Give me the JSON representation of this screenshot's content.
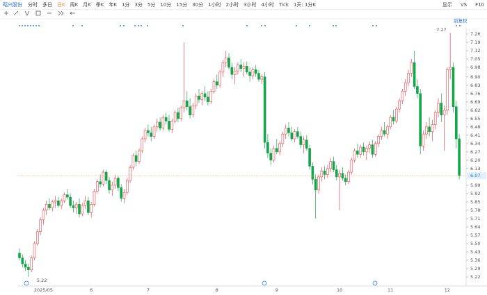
{
  "toolbar": {
    "stock": "昭兴股份",
    "periods": [
      "分时",
      "多日",
      "日K",
      "周K",
      "月K",
      "季K",
      "年K",
      "1分",
      "3分",
      "5分",
      "10分",
      "15分",
      "30分",
      "1小时",
      "2小时",
      "3小时",
      "4小时",
      "Tick",
      "1天: 1分K"
    ],
    "active_period": 2,
    "right": [
      "显示",
      "VS",
      "F10"
    ]
  },
  "chart_data": {
    "type": "candlestick",
    "adjust_label": "前复权",
    "up_color": "#e8474a",
    "down_color": "#13a54a",
    "categories": [
      null,
      null,
      null,
      null,
      null,
      null,
      null,
      null,
      "2025/05",
      null,
      null,
      null,
      null,
      null,
      null,
      null,
      null,
      null,
      null,
      null,
      null,
      null,
      null,
      null,
      "6",
      null,
      null,
      null,
      null,
      null,
      null,
      null,
      null,
      null,
      null,
      null,
      null,
      null,
      null,
      null,
      null,
      null,
      null,
      "7",
      null,
      null,
      null,
      null,
      null,
      null,
      null,
      null,
      null,
      null,
      null,
      null,
      null,
      null,
      null,
      null,
      null,
      null,
      null,
      null,
      null,
      null,
      "8",
      null,
      null,
      null,
      null,
      null,
      null,
      null,
      null,
      null,
      null,
      null,
      null,
      null,
      null,
      null,
      null,
      null,
      null,
      null,
      "9",
      null,
      null,
      null,
      null,
      null,
      null,
      null,
      null,
      null,
      null,
      null,
      null,
      null,
      null,
      null,
      null,
      null,
      null,
      null,
      null,
      "10",
      null,
      null,
      null,
      null,
      null,
      null,
      null,
      null,
      null,
      null,
      null,
      null,
      null,
      null,
      null,
      null,
      "11",
      null,
      null,
      null,
      null,
      null,
      null,
      null,
      null,
      null,
      null,
      null,
      null,
      null,
      null,
      null,
      null,
      null,
      null,
      "12",
      null,
      null,
      null,
      null
    ],
    "candles": [
      [
        5.42,
        5.46,
        5.36,
        5.38
      ],
      [
        5.38,
        5.41,
        5.3,
        5.33
      ],
      [
        5.33,
        5.36,
        5.27,
        5.3
      ],
      [
        5.3,
        5.33,
        5.22,
        5.28
      ],
      [
        5.28,
        5.4,
        5.26,
        5.38
      ],
      [
        5.38,
        5.52,
        5.36,
        5.5
      ],
      [
        5.5,
        5.62,
        5.48,
        5.6
      ],
      [
        5.6,
        5.72,
        5.57,
        5.7
      ],
      [
        5.7,
        5.8,
        5.66,
        5.78
      ],
      [
        5.78,
        5.86,
        5.74,
        5.83
      ],
      [
        5.83,
        5.88,
        5.78,
        5.8
      ],
      [
        5.8,
        5.87,
        5.77,
        5.85
      ],
      [
        5.85,
        5.9,
        5.8,
        5.86
      ],
      [
        5.86,
        5.89,
        5.8,
        5.82
      ],
      [
        5.82,
        5.88,
        5.79,
        5.86
      ],
      [
        5.86,
        5.93,
        5.84,
        5.91
      ],
      [
        5.91,
        5.96,
        5.87,
        5.89
      ],
      [
        5.89,
        5.92,
        5.8,
        5.82
      ],
      [
        5.82,
        5.86,
        5.76,
        5.8
      ],
      [
        5.8,
        5.85,
        5.75,
        5.83
      ],
      [
        5.83,
        5.88,
        5.72,
        5.75
      ],
      [
        5.75,
        5.84,
        5.73,
        5.82
      ],
      [
        5.82,
        5.9,
        5.79,
        5.86
      ],
      [
        5.86,
        5.89,
        5.74,
        5.76
      ],
      [
        5.76,
        5.85,
        5.72,
        5.83
      ],
      [
        5.83,
        5.96,
        5.81,
        5.94
      ],
      [
        5.94,
        6.04,
        5.92,
        6.02
      ],
      [
        6.02,
        6.08,
        5.97,
        6.0
      ],
      [
        6.0,
        6.12,
        5.98,
        6.1
      ],
      [
        6.1,
        6.12,
        6.0,
        6.03
      ],
      [
        6.03,
        6.06,
        5.92,
        5.95
      ],
      [
        5.95,
        6.02,
        5.9,
        5.99
      ],
      [
        5.99,
        6.08,
        5.96,
        6.05
      ],
      [
        6.05,
        6.07,
        5.94,
        5.97
      ],
      [
        5.97,
        6.0,
        5.85,
        5.88
      ],
      [
        5.88,
        5.96,
        5.84,
        5.93
      ],
      [
        5.93,
        6.05,
        5.91,
        6.03
      ],
      [
        6.03,
        6.16,
        6.01,
        6.14
      ],
      [
        6.14,
        6.26,
        6.12,
        6.24
      ],
      [
        6.24,
        6.28,
        6.15,
        6.19
      ],
      [
        6.19,
        6.3,
        6.17,
        6.28
      ],
      [
        6.28,
        6.4,
        6.26,
        6.38
      ],
      [
        6.38,
        6.47,
        6.35,
        6.45
      ],
      [
        6.45,
        6.5,
        6.4,
        6.43
      ],
      [
        6.43,
        6.48,
        6.36,
        6.4
      ],
      [
        6.4,
        6.5,
        6.38,
        6.48
      ],
      [
        6.48,
        6.55,
        6.44,
        6.52
      ],
      [
        6.52,
        6.56,
        6.45,
        6.47
      ],
      [
        6.47,
        6.58,
        6.45,
        6.56
      ],
      [
        6.56,
        6.6,
        6.5,
        6.53
      ],
      [
        6.53,
        6.58,
        6.44,
        6.46
      ],
      [
        6.46,
        6.55,
        6.43,
        6.53
      ],
      [
        6.53,
        6.62,
        6.51,
        6.6
      ],
      [
        6.6,
        6.64,
        6.52,
        6.55
      ],
      [
        6.55,
        6.66,
        6.53,
        6.64
      ],
      [
        6.64,
        7.19,
        6.6,
        6.7
      ],
      [
        6.7,
        6.78,
        6.62,
        6.65
      ],
      [
        6.65,
        6.72,
        6.55,
        6.58
      ],
      [
        6.58,
        6.68,
        6.56,
        6.66
      ],
      [
        6.66,
        6.76,
        6.63,
        6.74
      ],
      [
        6.74,
        6.8,
        6.68,
        6.71
      ],
      [
        6.71,
        6.78,
        6.66,
        6.76
      ],
      [
        6.76,
        6.82,
        6.7,
        6.73
      ],
      [
        6.73,
        6.78,
        6.66,
        6.69
      ],
      [
        6.69,
        6.8,
        6.67,
        6.78
      ],
      [
        6.78,
        6.88,
        6.76,
        6.86
      ],
      [
        6.86,
        6.92,
        6.8,
        6.83
      ],
      [
        6.83,
        6.96,
        6.81,
        6.94
      ],
      [
        6.94,
        7.04,
        6.9,
        7.02
      ],
      [
        7.02,
        7.12,
        6.98,
        7.06
      ],
      [
        7.06,
        7.1,
        6.96,
        6.98
      ],
      [
        6.98,
        7.02,
        6.88,
        6.92
      ],
      [
        6.92,
        6.98,
        6.84,
        6.95
      ],
      [
        6.95,
        7.02,
        6.92,
        7.0
      ],
      [
        7.0,
        7.05,
        6.94,
        6.97
      ],
      [
        6.97,
        7.02,
        6.9,
        6.99
      ],
      [
        6.99,
        7.03,
        6.92,
        6.94
      ],
      [
        6.94,
        6.98,
        6.86,
        6.91
      ],
      [
        6.91,
        6.98,
        6.88,
        6.96
      ],
      [
        6.96,
        7.0,
        6.9,
        6.93
      ],
      [
        6.93,
        6.96,
        6.86,
        6.88
      ],
      [
        6.88,
        6.92,
        6.84,
        6.9
      ],
      [
        6.9,
        6.94,
        6.3,
        6.35
      ],
      [
        6.35,
        6.42,
        6.22,
        6.26
      ],
      [
        6.26,
        6.3,
        6.16,
        6.2
      ],
      [
        6.2,
        6.32,
        6.18,
        6.3
      ],
      [
        6.3,
        6.38,
        6.25,
        6.27
      ],
      [
        6.27,
        6.36,
        6.24,
        6.34
      ],
      [
        6.34,
        6.44,
        6.31,
        6.42
      ],
      [
        6.42,
        6.5,
        6.38,
        6.47
      ],
      [
        6.47,
        6.52,
        6.4,
        6.43
      ],
      [
        6.43,
        6.48,
        6.36,
        6.38
      ],
      [
        6.38,
        6.46,
        6.35,
        6.44
      ],
      [
        6.44,
        6.48,
        6.38,
        6.4
      ],
      [
        6.4,
        6.44,
        6.3,
        6.33
      ],
      [
        6.33,
        6.4,
        6.26,
        6.37
      ],
      [
        6.37,
        6.41,
        6.28,
        6.3
      ],
      [
        6.3,
        6.33,
        6.12,
        6.15
      ],
      [
        6.15,
        6.18,
        6.0,
        6.04
      ],
      [
        6.04,
        6.08,
        5.71,
        5.95
      ],
      [
        5.95,
        6.08,
        5.92,
        6.06
      ],
      [
        6.06,
        6.14,
        6.02,
        6.11
      ],
      [
        6.11,
        6.15,
        6.04,
        6.08
      ],
      [
        6.08,
        6.16,
        6.05,
        6.13
      ],
      [
        6.13,
        6.22,
        6.1,
        6.19
      ],
      [
        6.19,
        6.23,
        6.1,
        6.12
      ],
      [
        6.12,
        6.16,
        6.03,
        6.06
      ],
      [
        6.06,
        6.12,
        5.78,
        6.09
      ],
      [
        6.09,
        6.14,
        6.03,
        6.05
      ],
      [
        6.05,
        6.08,
        5.99,
        6.02
      ],
      [
        6.02,
        6.12,
        6.0,
        6.1
      ],
      [
        6.1,
        6.22,
        6.08,
        6.2
      ],
      [
        6.2,
        6.3,
        6.18,
        6.28
      ],
      [
        6.28,
        6.34,
        6.22,
        6.25
      ],
      [
        6.25,
        6.33,
        6.22,
        6.31
      ],
      [
        6.31,
        6.35,
        6.24,
        6.27
      ],
      [
        6.27,
        6.32,
        6.2,
        6.3
      ],
      [
        6.3,
        6.36,
        6.26,
        6.33
      ],
      [
        6.33,
        6.37,
        6.22,
        6.25
      ],
      [
        6.25,
        6.36,
        6.23,
        6.34
      ],
      [
        6.34,
        6.42,
        6.31,
        6.4
      ],
      [
        6.4,
        6.48,
        6.37,
        6.45
      ],
      [
        6.45,
        6.52,
        6.4,
        6.42
      ],
      [
        6.42,
        6.5,
        6.38,
        6.48
      ],
      [
        6.48,
        6.58,
        6.46,
        6.56
      ],
      [
        6.56,
        6.62,
        6.5,
        6.53
      ],
      [
        6.53,
        6.65,
        6.51,
        6.63
      ],
      [
        6.63,
        6.72,
        6.6,
        6.7
      ],
      [
        6.7,
        6.8,
        6.67,
        6.78
      ],
      [
        6.78,
        6.88,
        6.74,
        6.85
      ],
      [
        6.85,
        6.96,
        6.82,
        6.93
      ],
      [
        6.93,
        7.05,
        6.9,
        7.02
      ],
      [
        7.02,
        7.12,
        6.8,
        6.82
      ],
      [
        6.82,
        6.88,
        6.72,
        6.76
      ],
      [
        6.76,
        6.8,
        6.25,
        6.32
      ],
      [
        6.32,
        6.45,
        6.28,
        6.42
      ],
      [
        6.42,
        6.52,
        6.38,
        6.48
      ],
      [
        6.48,
        6.56,
        6.4,
        6.44
      ],
      [
        6.44,
        6.54,
        6.36,
        6.5
      ],
      [
        6.5,
        6.62,
        6.46,
        6.6
      ],
      [
        6.6,
        6.72,
        6.56,
        6.68
      ],
      [
        6.68,
        6.76,
        6.52,
        6.58
      ],
      [
        6.58,
        6.66,
        6.28,
        6.62
      ],
      [
        6.62,
        6.98,
        6.58,
        6.96
      ],
      [
        6.96,
        7.27,
        6.88,
        6.98
      ],
      [
        6.98,
        7.02,
        6.6,
        6.65
      ],
      [
        6.65,
        6.7,
        6.3,
        6.38
      ],
      [
        6.38,
        6.42,
        6.04,
        6.07
      ]
    ],
    "ylim": [
      5.22,
      7.26
    ],
    "yticks": [
      7.26,
      7.19,
      7.12,
      7.05,
      6.98,
      {
        "value": 6.9,
        "label": "6.90"
      },
      6.83,
      6.76,
      6.69,
      6.62,
      6.55,
      6.48,
      6.41,
      6.34,
      6.27,
      {
        "value": 6.2,
        "label": "6.20"
      },
      6.13,
      5.99,
      5.92,
      5.85,
      5.78,
      5.71,
      5.64,
      5.57,
      {
        "value": 5.5,
        "label": "5.50"
      },
      5.43,
      5.36,
      5.29,
      5.22
    ],
    "grid": false
  }
}
